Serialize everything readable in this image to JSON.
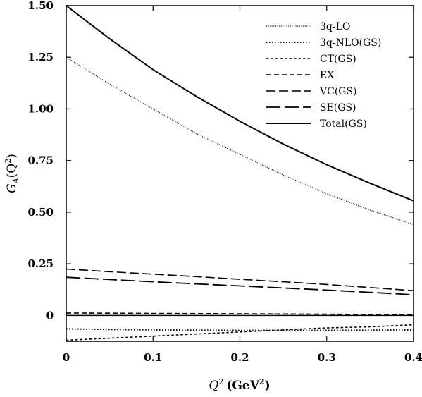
{
  "chart_data": {
    "type": "line",
    "xlabel": {
      "main": "Q",
      "sup": "2",
      "unit": "(GeV",
      "unit_sup": "2",
      "unit_close": ")"
    },
    "ylabel": {
      "main": "G",
      "sub": "A",
      "open": "(Q",
      "sup": "2",
      "close": ")"
    },
    "xlim": [
      0,
      0.4
    ],
    "ylim": [
      -0.125,
      1.5
    ],
    "x_ticks": [
      {
        "value": 0,
        "label": "0"
      },
      {
        "value": 0.1,
        "label": "0.1"
      },
      {
        "value": 0.2,
        "label": "0.2"
      },
      {
        "value": 0.3,
        "label": "0.3"
      },
      {
        "value": 0.4,
        "label": "0.4"
      }
    ],
    "y_ticks": [
      {
        "value": 0,
        "label": "0"
      },
      {
        "value": 0.25,
        "label": "0.25"
      },
      {
        "value": 0.5,
        "label": "0.50"
      },
      {
        "value": 0.75,
        "label": "0.75"
      },
      {
        "value": 1.0,
        "label": "1.00"
      },
      {
        "value": 1.25,
        "label": "1.25"
      },
      {
        "value": 1.5,
        "label": "1.50"
      }
    ],
    "grid": false,
    "legend_position": "top-right",
    "x": [
      0,
      0.05,
      0.1,
      0.15,
      0.2,
      0.25,
      0.3,
      0.35,
      0.4
    ],
    "series": [
      {
        "name": "3q-LO",
        "style": "dot-fine",
        "values": [
          1.25,
          1.12,
          1.0,
          0.88,
          0.78,
          0.68,
          0.59,
          0.51,
          0.44
        ]
      },
      {
        "name": "3q-NLO(GS)",
        "style": "dot",
        "values": [
          -0.065,
          -0.068,
          -0.07,
          -0.071,
          -0.072,
          -0.072,
          -0.072,
          -0.071,
          -0.07
        ]
      },
      {
        "name": "CT(GS)",
        "style": "dash-short",
        "values": [
          -0.12,
          -0.11,
          -0.1,
          -0.09,
          -0.08,
          -0.07,
          -0.06,
          -0.055,
          -0.045
        ]
      },
      {
        "name": "EX",
        "style": "dash-medium",
        "values": [
          0.012,
          0.011,
          0.01,
          0.009,
          0.008,
          0.007,
          0.006,
          0.005,
          0.004
        ]
      },
      {
        "name": "VC(GS)",
        "style": "dash-long",
        "values": [
          0.225,
          0.212,
          0.2,
          0.188,
          0.175,
          0.163,
          0.15,
          0.135,
          0.12
        ]
      },
      {
        "name": "SE(GS)",
        "style": "dash-xlong",
        "values": [
          0.185,
          0.174,
          0.163,
          0.153,
          0.143,
          0.133,
          0.123,
          0.112,
          0.1
        ]
      },
      {
        "name": "Total(GS)",
        "style": "solid",
        "values": [
          1.5,
          1.34,
          1.19,
          1.06,
          0.94,
          0.83,
          0.73,
          0.64,
          0.555
        ]
      }
    ]
  }
}
